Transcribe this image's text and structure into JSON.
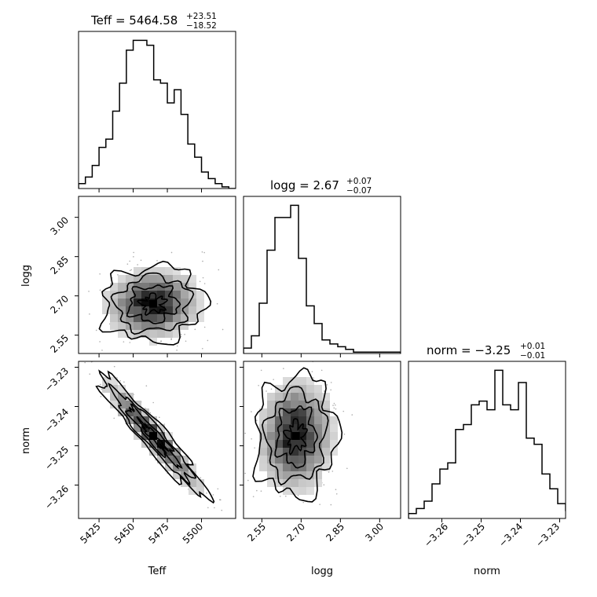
{
  "chart_data": [
    {
      "type": "histogram",
      "panel": "Teff",
      "title": {
        "prefix": "Teff = ",
        "value": "5464.58",
        "upper": "+23.51",
        "lower": "−18.52"
      },
      "xlim": [
        5410,
        5525
      ],
      "bin_edges": [
        5410,
        5415,
        5420,
        5425,
        5430,
        5435,
        5440,
        5445,
        5450,
        5455,
        5460,
        5465,
        5470,
        5475,
        5480,
        5485,
        5490,
        5495,
        5500,
        5505,
        5510,
        5515,
        5520,
        5525
      ],
      "counts": [
        3,
        7,
        14,
        25,
        30,
        47,
        64,
        84,
        90,
        90,
        87,
        66,
        64,
        52,
        60,
        45,
        27,
        19,
        10,
        6,
        3,
        1,
        0
      ],
      "xticks": [
        5425,
        5450,
        5475,
        5500
      ]
    },
    {
      "type": "histogram",
      "panel": "logg",
      "title": {
        "prefix": "logg = ",
        "value": "2.67",
        "upper": "+0.07",
        "lower": "−0.07"
      },
      "xlim": [
        2.48,
        3.08
      ],
      "bin_edges": [
        2.48,
        2.51,
        2.54,
        2.57,
        2.6,
        2.63,
        2.66,
        2.69,
        2.72,
        2.75,
        2.78,
        2.81,
        2.84,
        2.87,
        2.9,
        2.93,
        2.96,
        2.99,
        3.02,
        3.05,
        3.08
      ],
      "counts": [
        4,
        13,
        37,
        76,
        100,
        100,
        109,
        70,
        35,
        22,
        10,
        7,
        5,
        3,
        1,
        1,
        1,
        1,
        1,
        1
      ],
      "xticks": [
        2.55,
        2.7,
        2.85,
        3.0
      ]
    },
    {
      "type": "histogram",
      "panel": "norm",
      "title": {
        "prefix": "norm = ",
        "value": "−3.25",
        "upper": "+0.01",
        "lower": "−0.01"
      },
      "xlim": [
        -3.2685,
        -3.2285
      ],
      "bin_edges": [
        -3.2685,
        -3.2665,
        -3.2645,
        -3.2625,
        -3.2605,
        -3.2585,
        -3.2565,
        -3.2545,
        -3.2525,
        -3.2505,
        -3.2485,
        -3.2465,
        -3.2445,
        -3.2425,
        -3.2405,
        -3.2385,
        -3.2365,
        -3.2345,
        -3.2325,
        -3.2305,
        -3.2285
      ],
      "counts": [
        4,
        8,
        14,
        28,
        40,
        45,
        72,
        76,
        92,
        95,
        88,
        120,
        92,
        88,
        110,
        65,
        60,
        36,
        24,
        12,
        6
      ],
      "xticks": [
        -3.26,
        -3.25,
        -3.24,
        -3.23
      ]
    },
    {
      "type": "density_contour",
      "panel": "logg vs Teff",
      "x": "Teff",
      "y": "logg",
      "xlim": [
        5410,
        5525
      ],
      "ylim": [
        2.48,
        3.08
      ],
      "center": [
        5464.58,
        2.67
      ],
      "sigma": [
        18,
        0.07
      ],
      "rho": 0.05,
      "xticks": [
        5425,
        5450,
        5475,
        5500
      ],
      "yticks": [
        2.55,
        2.7,
        2.85,
        3.0
      ]
    },
    {
      "type": "density_contour",
      "panel": "norm vs Teff",
      "x": "Teff",
      "y": "norm",
      "xlim": [
        5410,
        5525
      ],
      "ylim": [
        -3.2685,
        -3.2285
      ],
      "center": [
        5464.58,
        -3.2475
      ],
      "sigma": [
        19,
        0.0075
      ],
      "rho": -0.95,
      "xticks": [
        5425,
        5450,
        5475,
        5500
      ],
      "yticks": [
        -3.23,
        -3.24,
        -3.25,
        -3.26
      ]
    },
    {
      "type": "density_contour",
      "panel": "norm vs logg",
      "x": "logg",
      "y": "norm",
      "xlim": [
        2.48,
        3.08
      ],
      "ylim": [
        -3.2685,
        -3.2285
      ],
      "center": [
        2.68,
        -3.2475
      ],
      "sigma": [
        0.075,
        0.0075
      ],
      "rho": 0.05,
      "xticks": [
        2.55,
        2.7,
        2.85,
        3.0
      ],
      "yticks": []
    }
  ],
  "axis_labels": {
    "teff": "Teff",
    "logg": "logg",
    "norm": "norm"
  },
  "tick_labels": {
    "teff": [
      "5425",
      "5450",
      "5475",
      "5500"
    ],
    "logg_x": [
      "2.55",
      "2.70",
      "2.85",
      "3.00"
    ],
    "logg_y": [
      "2.55",
      "2.70",
      "2.85",
      "3.00"
    ],
    "norm_x": [
      "−3.26",
      "−3.25",
      "−3.24",
      "−3.23"
    ],
    "norm_y": [
      "−3.23",
      "−3.24",
      "−3.25",
      "−3.26"
    ]
  }
}
